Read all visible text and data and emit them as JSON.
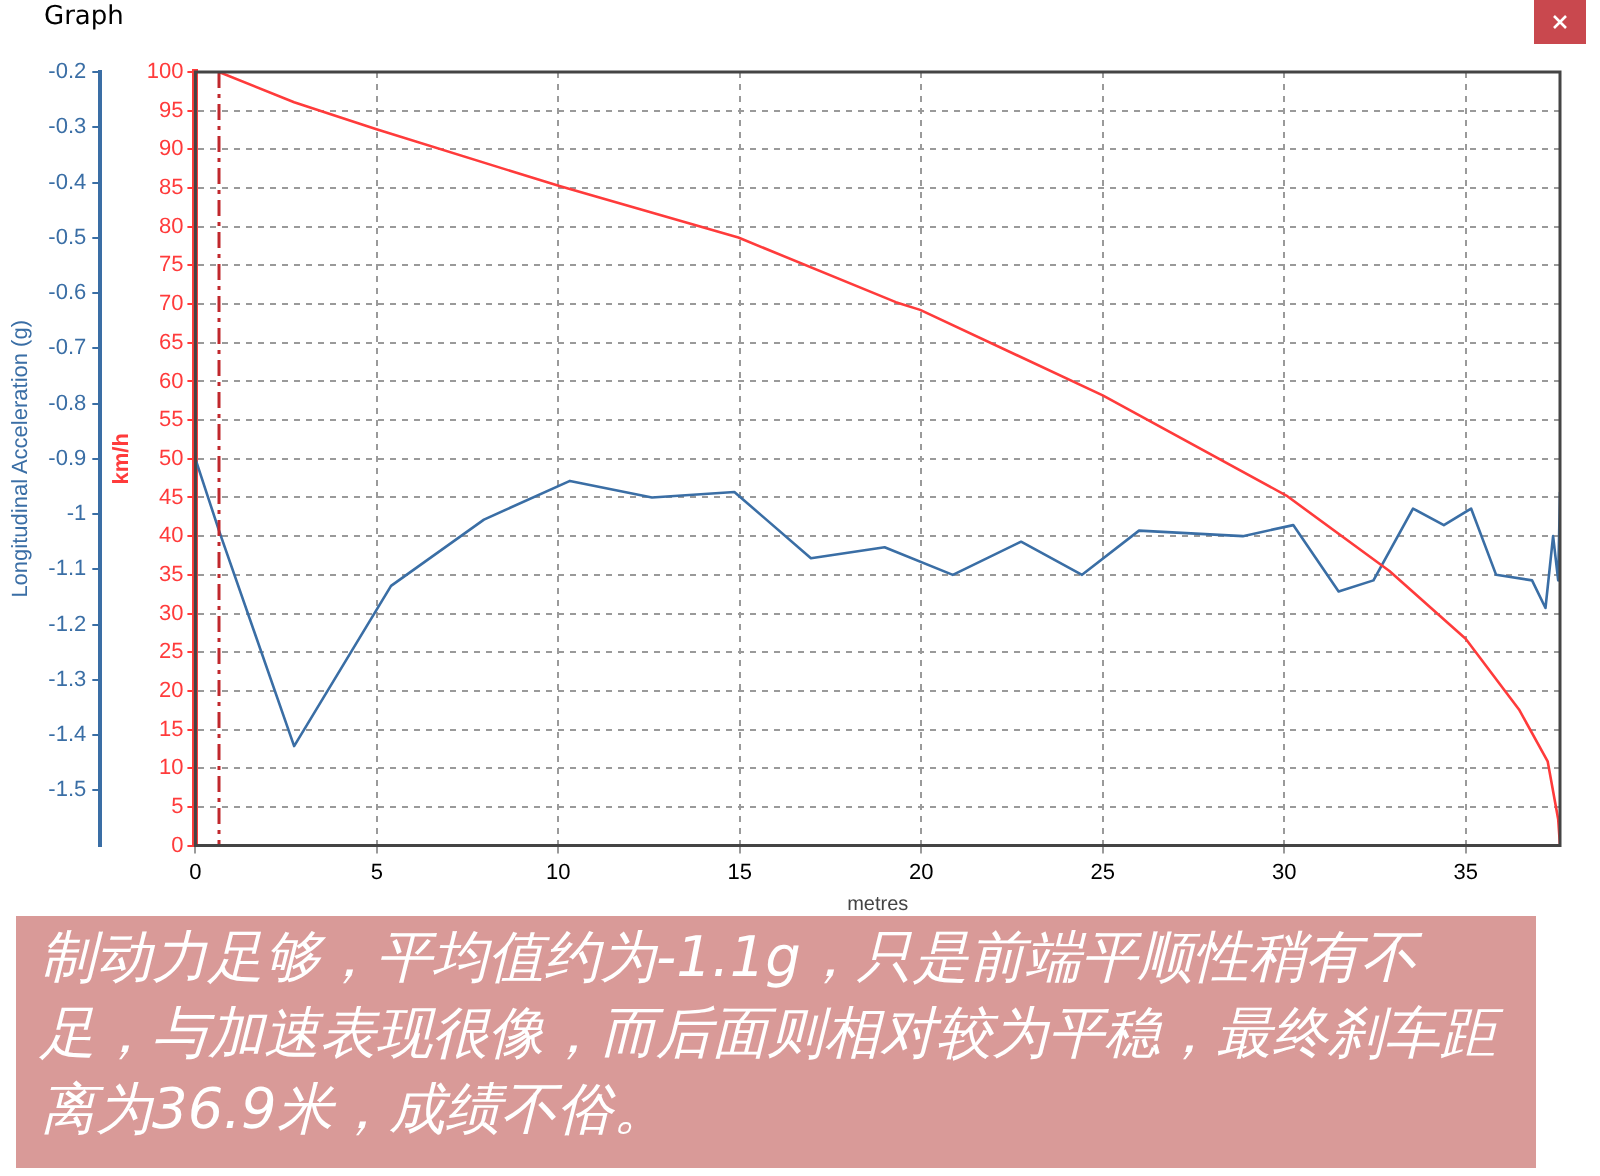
{
  "chart_data": {
    "type": "line",
    "title": "Graph",
    "xlabel": "metres",
    "ylabel": "km/h",
    "y2label": "Longitudinal Acceleration (g)",
    "series": [
      {
        "color": "#ff3b3b",
        "axis": "y",
        "x": [
          0.65,
          2.72,
          4.99,
          10.03,
          14.96,
          19.3,
          19.97,
          25.0,
          30.06,
          32.9,
          35.0,
          36.47,
          37.26,
          37.55,
          37.6
        ],
        "values": [
          100,
          96.1,
          92.6,
          85.25,
          78.6,
          70.25,
          69.25,
          58.2,
          45.25,
          35.5,
          26.75,
          17.6,
          10.9,
          3.4,
          0
        ]
      },
      {
        "color": "#3a6ea5",
        "axis": "y2",
        "x": [
          0,
          0.65,
          2.72,
          5.39,
          7.95,
          10.32,
          12.58,
          14.85,
          16.96,
          18.99,
          20.87,
          22.75,
          24.43,
          26.0,
          28.86,
          30.25,
          31.5,
          32.46,
          33.55,
          34.4,
          35.15,
          35.84,
          36.83,
          37.2,
          37.41,
          37.55,
          37.6
        ],
        "values": [
          -0.9,
          -1.03,
          -1.42,
          -1.13,
          -1.01,
          -0.94,
          -0.97,
          -0.96,
          -1.08,
          -1.06,
          -1.11,
          -1.05,
          -1.11,
          -1.03,
          -1.04,
          -1.02,
          -1.14,
          -1.12,
          -0.99,
          -1.02,
          -0.99,
          -1.11,
          -1.12,
          -1.17,
          -1.04,
          -1.12,
          -0.96
        ]
      }
    ],
    "xlim": [
      0,
      37.6
    ],
    "xticks": [
      0,
      5,
      10,
      15,
      20,
      25,
      30,
      35
    ],
    "ylim": [
      0,
      100
    ],
    "yticks": [
      0,
      5,
      10,
      15,
      20,
      25,
      30,
      35,
      40,
      45,
      50,
      55,
      60,
      65,
      70,
      75,
      80,
      85,
      90,
      95,
      100
    ],
    "y2lim": [
      -1.6,
      -0.2
    ],
    "y2ticks": [
      -1.5,
      -1.4,
      -1.3,
      -1.2,
      -1.1,
      -1,
      -0.9,
      -0.8,
      -0.7,
      -0.6,
      -0.5,
      -0.4,
      -0.3,
      -0.2
    ],
    "ref_lines": [
      {
        "axis": "x",
        "value": 0.65,
        "color": "#c0282d",
        "line_style": "dashed"
      }
    ],
    "grid": true,
    "legend": false,
    "marker": "none",
    "line_style": "solid",
    "annotations": [
      "制动力足够，平均值约为-1.1g，只是前端平顺性稍有不足，与加速表现很像，而后面则相对较为平稳，最终刹车距离为36.9米，成绩不俗。"
    ]
  }
}
